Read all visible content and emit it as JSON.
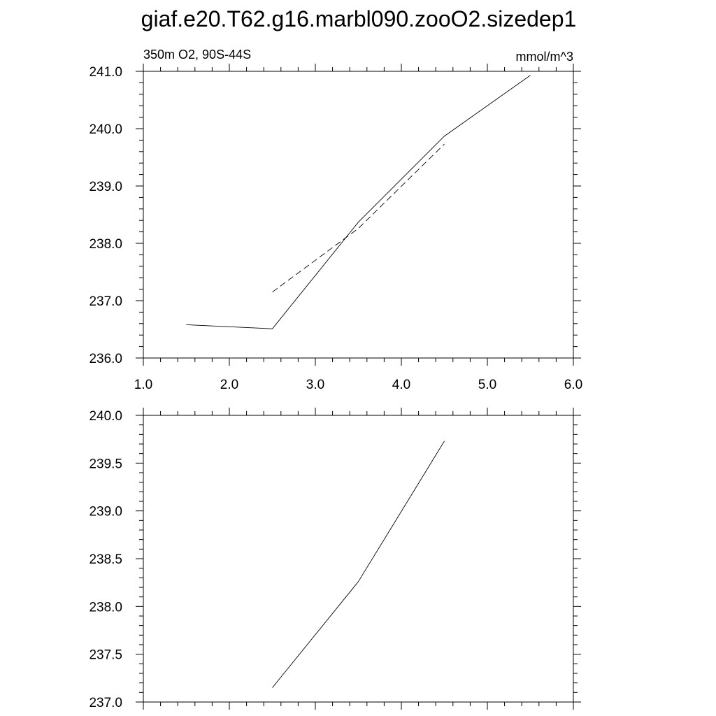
{
  "figure": {
    "title": "giaf.e20.T62.g16.marbl090.zooO2.sizedep1"
  },
  "chart_data": [
    {
      "type": "line",
      "title": "",
      "left_label": "350m O2, 90S-44S",
      "right_label": "mmol/m^3",
      "xlabel": "",
      "ylabel": "",
      "xlim": [
        1.0,
        6.0
      ],
      "ylim": [
        236.0,
        241.0
      ],
      "x_ticks": [
        "1.0",
        "2.0",
        "3.0",
        "4.0",
        "5.0",
        "6.0"
      ],
      "y_ticks": [
        "236.0",
        "237.0",
        "238.0",
        "239.0",
        "240.0",
        "241.0"
      ],
      "grid": false,
      "series": [
        {
          "style": "solid",
          "color": "#000000",
          "x": [
            1.5,
            2.5,
            3.5,
            4.5,
            5.5
          ],
          "y": [
            236.58,
            236.51,
            238.37,
            239.87,
            240.93
          ]
        },
        {
          "style": "dashed",
          "color": "#000000",
          "x": [
            2.5,
            3.5,
            4.5
          ],
          "y": [
            237.15,
            238.26,
            239.73
          ]
        }
      ]
    },
    {
      "type": "line",
      "title": "",
      "xlabel": "",
      "ylabel": "",
      "xlim": [
        1.0,
        6.0
      ],
      "ylim": [
        237.0,
        240.0
      ],
      "x_ticks": [],
      "y_ticks": [
        "237.0",
        "237.5",
        "238.0",
        "238.5",
        "239.0",
        "239.5",
        "240.0"
      ],
      "grid": false,
      "series": [
        {
          "style": "solid",
          "color": "#000000",
          "x": [
            2.5,
            3.5,
            4.5
          ],
          "y": [
            237.15,
            238.26,
            239.73
          ]
        }
      ]
    }
  ]
}
